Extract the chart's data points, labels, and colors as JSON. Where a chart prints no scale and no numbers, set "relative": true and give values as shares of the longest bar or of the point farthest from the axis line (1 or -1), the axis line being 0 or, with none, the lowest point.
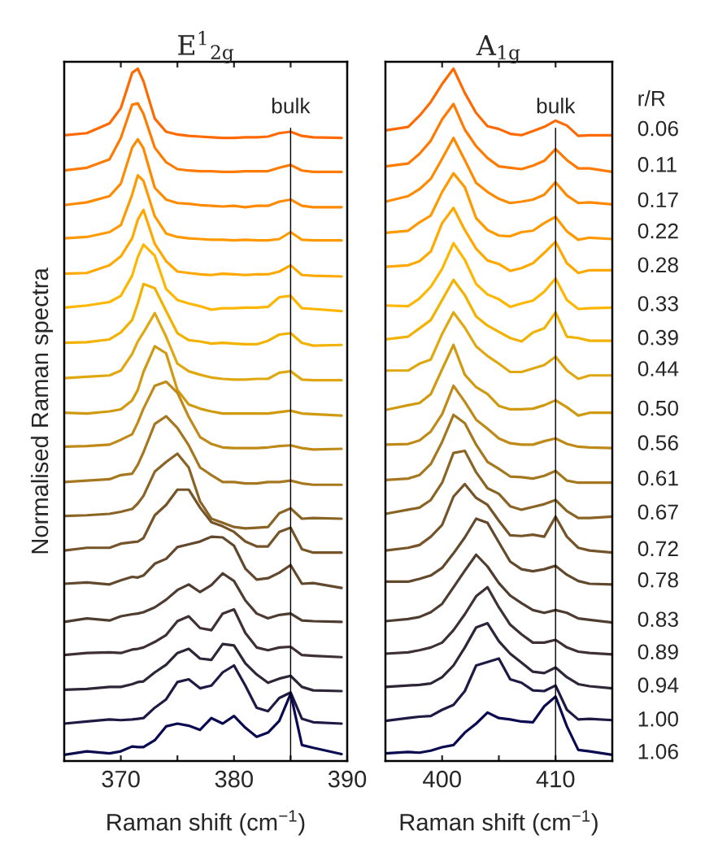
{
  "chart_data": [
    {
      "type": "line",
      "title": "E$^{1}$$_{2g}$",
      "xlabel": "Raman shift (cm$^{−1}$)",
      "ylabel": "Normalised Raman spectra",
      "relative": true,
      "xlim": [
        365,
        390
      ],
      "xticks": [
        370,
        {
          "value": 375,
          "label": null
        },
        380,
        {
          "value": 385,
          "label": null
        },
        390
      ],
      "ref_lines": [
        {
          "axis": "x",
          "value": 385,
          "label": "bulk",
          "color": "#000000"
        }
      ],
      "x": [
        365,
        367,
        369,
        370,
        371,
        371.5,
        372,
        373,
        374,
        375,
        376,
        377,
        378,
        379,
        380,
        381,
        382,
        383,
        384,
        385,
        386,
        387,
        389.5
      ],
      "series": [
        {
          "color": "#ff6a00",
          "values": [
            0.904,
            0.907,
            0.921,
            0.943,
            0.994,
            1.0,
            0.982,
            0.928,
            0.909,
            0.905,
            0.903,
            0.902,
            0.901,
            0.9,
            0.9,
            0.901,
            0.901,
            0.902,
            0.907,
            0.909,
            0.903,
            0.901,
            0.9
          ]
        },
        {
          "color": "#ff7a00",
          "values": [
            0.853,
            0.857,
            0.869,
            0.9,
            0.948,
            0.95,
            0.935,
            0.886,
            0.865,
            0.855,
            0.853,
            0.852,
            0.852,
            0.851,
            0.851,
            0.852,
            0.852,
            0.852,
            0.857,
            0.861,
            0.853,
            0.851,
            0.851
          ]
        },
        {
          "color": "#ff8a00",
          "values": [
            0.803,
            0.807,
            0.816,
            0.834,
            0.886,
            0.898,
            0.885,
            0.828,
            0.811,
            0.806,
            0.805,
            0.803,
            0.802,
            0.801,
            0.802,
            0.8,
            0.802,
            0.802,
            0.808,
            0.811,
            0.802,
            0.8,
            0.8
          ]
        },
        {
          "color": "#ff9900",
          "values": [
            0.755,
            0.757,
            0.764,
            0.774,
            0.818,
            0.846,
            0.838,
            0.787,
            0.762,
            0.757,
            0.755,
            0.754,
            0.753,
            0.753,
            0.752,
            0.753,
            0.752,
            0.752,
            0.754,
            0.764,
            0.753,
            0.752,
            0.752
          ]
        },
        {
          "color": "#ffa800",
          "values": [
            0.704,
            0.705,
            0.716,
            0.729,
            0.755,
            0.782,
            0.796,
            0.747,
            0.722,
            0.707,
            0.705,
            0.703,
            0.702,
            0.704,
            0.703,
            0.702,
            0.703,
            0.703,
            0.707,
            0.716,
            0.702,
            0.701,
            0.7
          ]
        },
        {
          "color": "#ffb600",
          "values": [
            0.655,
            0.658,
            0.663,
            0.672,
            0.701,
            0.728,
            0.746,
            0.73,
            0.682,
            0.666,
            0.661,
            0.657,
            0.652,
            0.654,
            0.654,
            0.655,
            0.655,
            0.656,
            0.67,
            0.672,
            0.654,
            0.653,
            0.65
          ]
        },
        {
          "color": "#f2b200",
          "values": [
            0.604,
            0.605,
            0.609,
            0.619,
            0.637,
            0.661,
            0.689,
            0.683,
            0.65,
            0.618,
            0.608,
            0.606,
            0.603,
            0.604,
            0.603,
            0.602,
            0.602,
            0.607,
            0.616,
            0.618,
            0.604,
            0.6,
            0.601
          ]
        },
        {
          "color": "#e0a810",
          "values": [
            0.553,
            0.555,
            0.557,
            0.564,
            0.588,
            0.606,
            0.619,
            0.647,
            0.613,
            0.574,
            0.563,
            0.558,
            0.554,
            0.552,
            0.551,
            0.551,
            0.552,
            0.552,
            0.561,
            0.563,
            0.551,
            0.55,
            0.55
          ]
        },
        {
          "color": "#d09a10",
          "values": [
            0.503,
            0.502,
            0.505,
            0.508,
            0.521,
            0.536,
            0.562,
            0.599,
            0.589,
            0.536,
            0.515,
            0.509,
            0.505,
            0.502,
            0.502,
            0.502,
            0.502,
            0.502,
            0.504,
            0.506,
            0.502,
            0.501,
            0.499
          ]
        },
        {
          "color": "#bf8a18",
          "values": [
            0.454,
            0.455,
            0.457,
            0.464,
            0.472,
            0.489,
            0.509,
            0.542,
            0.548,
            0.532,
            0.497,
            0.468,
            0.458,
            0.453,
            0.452,
            0.452,
            0.452,
            0.453,
            0.455,
            0.456,
            0.452,
            0.45,
            0.451
          ]
        },
        {
          "color": "#a57820",
          "values": [
            0.403,
            0.405,
            0.407,
            0.413,
            0.415,
            0.428,
            0.446,
            0.487,
            0.498,
            0.481,
            0.456,
            0.424,
            0.413,
            0.403,
            0.403,
            0.401,
            0.401,
            0.403,
            0.403,
            0.405,
            0.401,
            0.399,
            0.399
          ]
        },
        {
          "color": "#8a6424",
          "values": [
            0.354,
            0.355,
            0.357,
            0.36,
            0.364,
            0.372,
            0.383,
            0.418,
            0.432,
            0.444,
            0.424,
            0.375,
            0.35,
            0.344,
            0.338,
            0.336,
            0.337,
            0.338,
            0.358,
            0.365,
            0.35,
            0.351,
            0.35
          ]
        },
        {
          "color": "#745428",
          "values": [
            0.304,
            0.308,
            0.308,
            0.314,
            0.316,
            0.317,
            0.322,
            0.355,
            0.37,
            0.392,
            0.392,
            0.366,
            0.345,
            0.339,
            0.331,
            0.317,
            0.31,
            0.31,
            0.331,
            0.337,
            0.306,
            0.301,
            0.301
          ]
        },
        {
          "color": "#62482c",
          "values": [
            0.256,
            0.258,
            0.255,
            0.261,
            0.266,
            0.265,
            0.268,
            0.285,
            0.292,
            0.309,
            0.313,
            0.317,
            0.324,
            0.323,
            0.311,
            0.278,
            0.262,
            0.264,
            0.272,
            0.283,
            0.256,
            0.257,
            0.25
          ]
        },
        {
          "color": "#4e3c30",
          "values": [
            0.201,
            0.206,
            0.203,
            0.209,
            0.212,
            0.213,
            0.215,
            0.222,
            0.233,
            0.247,
            0.255,
            0.244,
            0.254,
            0.271,
            0.26,
            0.232,
            0.213,
            0.206,
            0.211,
            0.213,
            0.203,
            0.202,
            0.201
          ]
        },
        {
          "color": "#3e3034",
          "values": [
            0.153,
            0.156,
            0.157,
            0.156,
            0.161,
            0.162,
            0.164,
            0.172,
            0.182,
            0.202,
            0.209,
            0.192,
            0.189,
            0.213,
            0.219,
            0.185,
            0.164,
            0.16,
            0.164,
            0.165,
            0.153,
            0.152,
            0.15
          ]
        },
        {
          "color": "#2e2538",
          "values": [
            0.103,
            0.104,
            0.107,
            0.107,
            0.111,
            0.114,
            0.115,
            0.128,
            0.139,
            0.156,
            0.162,
            0.148,
            0.146,
            0.169,
            0.167,
            0.141,
            0.125,
            0.113,
            0.119,
            0.123,
            0.107,
            0.102,
            0.101
          ]
        },
        {
          "color": "#1e1a44",
          "values": [
            0.054,
            0.057,
            0.06,
            0.059,
            0.06,
            0.061,
            0.062,
            0.077,
            0.089,
            0.114,
            0.118,
            0.105,
            0.109,
            0.128,
            0.138,
            0.109,
            0.077,
            0.072,
            0.091,
            0.099,
            0.061,
            0.056,
            0.054
          ]
        },
        {
          "color": "#0a0a50",
          "values": [
            0.009,
            0.014,
            0.011,
            0.014,
            0.021,
            0.02,
            0.02,
            0.03,
            0.05,
            0.054,
            0.051,
            0.045,
            0.062,
            0.054,
            0.065,
            0.048,
            0.035,
            0.041,
            0.058,
            0.097,
            0.023,
            0.019,
            0.01
          ]
        }
      ]
    },
    {
      "type": "line",
      "title": "A$_{1g}$",
      "xlabel": "Raman shift (cm$^{−1}$)",
      "relative": true,
      "xlim": [
        395,
        415
      ],
      "xticks": [
        400,
        {
          "value": 405,
          "label": null
        },
        410
      ],
      "ref_lines": [
        {
          "axis": "x",
          "value": 410,
          "label": "bulk",
          "color": "#000000"
        }
      ],
      "annotations": [
        "r/R"
      ],
      "x": [
        395,
        397,
        398,
        399,
        400,
        401,
        402,
        403,
        404,
        405,
        406,
        407,
        408,
        409,
        410,
        411,
        412,
        413,
        415
      ],
      "series": [
        {
          "name": "0.06",
          "color": "#ff6a00",
          "values": [
            0.911,
            0.916,
            0.932,
            0.952,
            0.978,
            1.0,
            0.965,
            0.936,
            0.917,
            0.913,
            0.906,
            0.904,
            0.91,
            0.916,
            0.925,
            0.918,
            0.903,
            0.904,
            0.904
          ]
        },
        {
          "name": "0.11",
          "color": "#ff7a00",
          "values": [
            0.859,
            0.863,
            0.877,
            0.896,
            0.927,
            0.949,
            0.912,
            0.888,
            0.871,
            0.859,
            0.857,
            0.855,
            0.86,
            0.867,
            0.884,
            0.868,
            0.856,
            0.856,
            0.851
          ]
        },
        {
          "name": "0.17",
          "color": "#ff8a00",
          "values": [
            0.808,
            0.816,
            0.826,
            0.841,
            0.87,
            0.9,
            0.868,
            0.835,
            0.822,
            0.812,
            0.806,
            0.808,
            0.811,
            0.818,
            0.836,
            0.817,
            0.806,
            0.807,
            0.804
          ]
        },
        {
          "name": "0.22",
          "color": "#ff9900",
          "values": [
            0.763,
            0.766,
            0.778,
            0.788,
            0.822,
            0.849,
            0.829,
            0.784,
            0.767,
            0.759,
            0.758,
            0.764,
            0.766,
            0.777,
            0.786,
            0.765,
            0.753,
            0.756,
            0.754
          ]
        },
        {
          "name": "0.28",
          "color": "#ffa800",
          "values": [
            0.714,
            0.716,
            0.722,
            0.736,
            0.777,
            0.799,
            0.767,
            0.74,
            0.723,
            0.718,
            0.708,
            0.712,
            0.719,
            0.734,
            0.75,
            0.719,
            0.705,
            0.709,
            0.709
          ]
        },
        {
          "name": "0.33",
          "color": "#ffb600",
          "values": [
            0.658,
            0.657,
            0.668,
            0.685,
            0.711,
            0.748,
            0.724,
            0.689,
            0.674,
            0.667,
            0.656,
            0.661,
            0.665,
            0.678,
            0.697,
            0.666,
            0.653,
            0.654,
            0.655
          ]
        },
        {
          "name": "0.39",
          "color": "#f2b200",
          "values": [
            0.609,
            0.613,
            0.625,
            0.637,
            0.666,
            0.695,
            0.673,
            0.642,
            0.629,
            0.62,
            0.611,
            0.606,
            0.619,
            0.625,
            0.648,
            0.613,
            0.611,
            0.607,
            0.607
          ]
        },
        {
          "name": "0.44",
          "color": "#e0a810",
          "values": [
            0.564,
            0.564,
            0.574,
            0.58,
            0.617,
            0.648,
            0.626,
            0.599,
            0.585,
            0.574,
            0.562,
            0.562,
            0.567,
            0.572,
            0.584,
            0.564,
            0.552,
            0.557,
            0.557
          ]
        },
        {
          "name": "0.50",
          "color": "#d09a10",
          "values": [
            0.507,
            0.514,
            0.517,
            0.53,
            0.566,
            0.601,
            0.558,
            0.54,
            0.53,
            0.513,
            0.508,
            0.508,
            0.509,
            0.514,
            0.521,
            0.511,
            0.499,
            0.503,
            0.503
          ]
        },
        {
          "name": "0.56",
          "color": "#bf8a18",
          "values": [
            0.457,
            0.458,
            0.463,
            0.476,
            0.501,
            0.542,
            0.519,
            0.493,
            0.48,
            0.466,
            0.459,
            0.457,
            0.457,
            0.462,
            0.466,
            0.458,
            0.454,
            0.453,
            0.452
          ]
        },
        {
          "name": "0.61",
          "color": "#a57820",
          "values": [
            0.406,
            0.408,
            0.413,
            0.429,
            0.461,
            0.5,
            0.488,
            0.457,
            0.432,
            0.422,
            0.411,
            0.41,
            0.408,
            0.412,
            0.419,
            0.405,
            0.402,
            0.402,
            0.402
          ]
        },
        {
          "name": "0.67",
          "color": "#8a6424",
          "values": [
            0.357,
            0.363,
            0.366,
            0.377,
            0.402,
            0.445,
            0.448,
            0.417,
            0.394,
            0.386,
            0.368,
            0.363,
            0.367,
            0.371,
            0.377,
            0.361,
            0.351,
            0.351,
            0.353
          ]
        },
        {
          "name": "0.72",
          "color": "#745428",
          "values": [
            0.304,
            0.308,
            0.312,
            0.324,
            0.341,
            0.382,
            0.4,
            0.38,
            0.37,
            0.347,
            0.326,
            0.325,
            0.327,
            0.324,
            0.353,
            0.324,
            0.308,
            0.304,
            0.301
          ]
        },
        {
          "name": "0.78",
          "color": "#62482c",
          "values": [
            0.259,
            0.259,
            0.263,
            0.268,
            0.279,
            0.3,
            0.323,
            0.35,
            0.344,
            0.316,
            0.288,
            0.277,
            0.274,
            0.277,
            0.282,
            0.269,
            0.26,
            0.256,
            0.255
          ]
        },
        {
          "name": "0.83",
          "color": "#4e3c30",
          "values": [
            0.202,
            0.205,
            0.208,
            0.215,
            0.227,
            0.251,
            0.275,
            0.298,
            0.281,
            0.257,
            0.239,
            0.228,
            0.218,
            0.214,
            0.218,
            0.214,
            0.206,
            0.204,
            0.2
          ]
        },
        {
          "name": "0.89",
          "color": "#3e3034",
          "values": [
            0.155,
            0.157,
            0.16,
            0.164,
            0.171,
            0.189,
            0.212,
            0.238,
            0.251,
            0.222,
            0.197,
            0.183,
            0.171,
            0.171,
            0.175,
            0.164,
            0.158,
            0.156,
            0.154
          ]
        },
        {
          "name": "0.94",
          "color": "#2e2538",
          "values": [
            0.107,
            0.109,
            0.11,
            0.112,
            0.121,
            0.138,
            0.164,
            0.193,
            0.199,
            0.173,
            0.155,
            0.142,
            0.129,
            0.127,
            0.135,
            0.121,
            0.111,
            0.108,
            0.105
          ]
        },
        {
          "name": "1.00",
          "color": "#1e1a44",
          "values": [
            0.058,
            0.062,
            0.064,
            0.065,
            0.074,
            0.081,
            0.101,
            0.138,
            0.143,
            0.148,
            0.118,
            0.113,
            0.102,
            0.101,
            0.109,
            0.074,
            0.06,
            0.061,
            0.059
          ]
        },
        {
          "name": "1.06",
          "color": "#0a0a50",
          "values": [
            0.011,
            0.013,
            0.012,
            0.015,
            0.02,
            0.023,
            0.041,
            0.054,
            0.07,
            0.062,
            0.06,
            0.057,
            0.056,
            0.079,
            0.093,
            0.05,
            0.016,
            0.014,
            0.009
          ]
        }
      ]
    }
  ]
}
